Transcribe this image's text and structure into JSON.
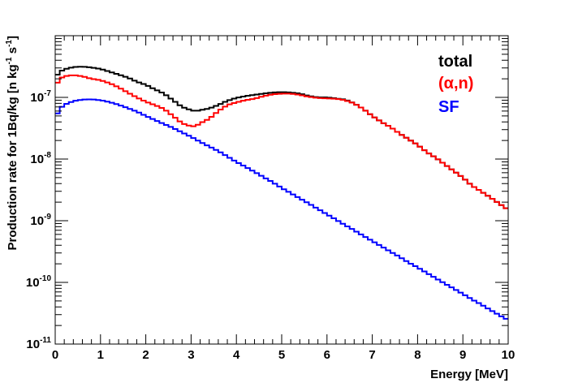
{
  "chart_data": {
    "type": "line",
    "step": true,
    "xlabel": "Energy [MeV]",
    "ylabel": "Production rate for 1Bq/kg [n kg⁻¹ s⁻¹]",
    "ylabel_parts": {
      "main": "Production rate for 1Bq/kg [n kg",
      "exp1": "-1",
      "mid": " s",
      "exp2": "-1",
      "end": "]"
    },
    "xlim": [
      0,
      10
    ],
    "ylim": [
      1e-11,
      1e-06
    ],
    "yscale": "log",
    "grid": false,
    "legend": "top-right",
    "x_ticks": [
      "0",
      "1",
      "2",
      "3",
      "4",
      "5",
      "6",
      "7",
      "8",
      "9",
      "10"
    ],
    "y_ticks": [
      {
        "value": 1e-11,
        "base": "10",
        "exp": "-11"
      },
      {
        "value": 1e-10,
        "base": "10",
        "exp": "-10"
      },
      {
        "value": 1e-09,
        "base": "10",
        "exp": "-9"
      },
      {
        "value": 1e-08,
        "base": "10",
        "exp": "-8"
      },
      {
        "value": 1e-07,
        "base": "10",
        "exp": "-7"
      }
    ],
    "series": [
      {
        "name": "total",
        "color": "#000000",
        "points": [
          [
            0,
            2.1e-07
          ],
          [
            0.1,
            2.6e-07
          ],
          [
            0.2,
            2.85e-07
          ],
          [
            0.4,
            3.1e-07
          ],
          [
            0.6,
            3.15e-07
          ],
          [
            0.8,
            3.05e-07
          ],
          [
            1.0,
            2.9e-07
          ],
          [
            1.2,
            2.6e-07
          ],
          [
            1.4,
            2.35e-07
          ],
          [
            1.6,
            2.1e-07
          ],
          [
            1.8,
            1.8e-07
          ],
          [
            2.0,
            1.6e-07
          ],
          [
            2.2,
            1.35e-07
          ],
          [
            2.4,
            1.15e-07
          ],
          [
            2.6,
            9e-08
          ],
          [
            2.8,
            7e-08
          ],
          [
            3.0,
            6.2e-08
          ],
          [
            3.1,
            6e-08
          ],
          [
            3.2,
            6.2e-08
          ],
          [
            3.4,
            6.6e-08
          ],
          [
            3.6,
            7.5e-08
          ],
          [
            3.8,
            8.8e-08
          ],
          [
            4.0,
            9.8e-08
          ],
          [
            4.2,
            1.05e-07
          ],
          [
            4.4,
            1.1e-07
          ],
          [
            4.6,
            1.15e-07
          ],
          [
            4.8,
            1.2e-07
          ],
          [
            5.0,
            1.22e-07
          ],
          [
            5.2,
            1.2e-07
          ],
          [
            5.4,
            1.15e-07
          ],
          [
            5.6,
            1.05e-07
          ],
          [
            5.8,
            1e-07
          ],
          [
            6.0,
            1e-07
          ],
          [
            6.2,
            9.6e-08
          ],
          [
            6.4,
            9.2e-08
          ],
          [
            6.6,
            8e-08
          ],
          [
            6.8,
            6.5e-08
          ],
          [
            7.0,
            5e-08
          ],
          [
            7.2,
            4e-08
          ],
          [
            7.4,
            3.3e-08
          ],
          [
            7.6,
            2.6e-08
          ],
          [
            7.8,
            2.1e-08
          ],
          [
            8.0,
            1.7e-08
          ],
          [
            8.2,
            1.3e-08
          ],
          [
            8.4,
            1.05e-08
          ],
          [
            8.6,
            8.2e-09
          ],
          [
            8.8,
            6.4e-09
          ],
          [
            9.0,
            5e-09
          ],
          [
            9.2,
            3.7e-09
          ],
          [
            9.4,
            3e-09
          ],
          [
            9.6,
            2.4e-09
          ],
          [
            9.8,
            1.9e-09
          ],
          [
            10.0,
            1.5e-09
          ]
        ]
      },
      {
        "name": "(α,n)",
        "color": "#ff0000",
        "points": [
          [
            0,
            1.5e-07
          ],
          [
            0.1,
            2e-07
          ],
          [
            0.2,
            2.2e-07
          ],
          [
            0.4,
            2.3e-07
          ],
          [
            0.6,
            2.2e-07
          ],
          [
            0.8,
            2e-07
          ],
          [
            1.0,
            1.9e-07
          ],
          [
            1.2,
            1.7e-07
          ],
          [
            1.4,
            1.45e-07
          ],
          [
            1.6,
            1.2e-07
          ],
          [
            1.8,
            1e-07
          ],
          [
            2.0,
            8.5e-08
          ],
          [
            2.2,
            7.5e-08
          ],
          [
            2.4,
            6.5e-08
          ],
          [
            2.6,
            5e-08
          ],
          [
            2.8,
            3.8e-08
          ],
          [
            3.0,
            3.4e-08
          ],
          [
            3.1,
            3.4e-08
          ],
          [
            3.2,
            3.8e-08
          ],
          [
            3.4,
            4.5e-08
          ],
          [
            3.6,
            6e-08
          ],
          [
            3.8,
            7.5e-08
          ],
          [
            4.0,
            8.3e-08
          ],
          [
            4.2,
            9e-08
          ],
          [
            4.4,
            9.5e-08
          ],
          [
            4.6,
            1.05e-07
          ],
          [
            4.8,
            1.12e-07
          ],
          [
            5.0,
            1.15e-07
          ],
          [
            5.2,
            1.15e-07
          ],
          [
            5.4,
            1.1e-07
          ],
          [
            5.6,
            1.02e-07
          ],
          [
            5.8,
            9.8e-08
          ],
          [
            6.0,
            9.6e-08
          ],
          [
            6.2,
            9.5e-08
          ],
          [
            6.4,
            9e-08
          ],
          [
            6.6,
            8e-08
          ],
          [
            6.8,
            6.5e-08
          ],
          [
            7.0,
            5e-08
          ],
          [
            7.2,
            4e-08
          ],
          [
            7.4,
            3.3e-08
          ],
          [
            7.6,
            2.6e-08
          ],
          [
            7.8,
            2.1e-08
          ],
          [
            8.0,
            1.7e-08
          ],
          [
            8.2,
            1.3e-08
          ],
          [
            8.4,
            1.05e-08
          ],
          [
            8.6,
            8.2e-09
          ],
          [
            8.8,
            6.4e-09
          ],
          [
            9.0,
            5e-09
          ],
          [
            9.2,
            3.7e-09
          ],
          [
            9.4,
            3e-09
          ],
          [
            9.6,
            2.4e-09
          ],
          [
            9.8,
            1.9e-09
          ],
          [
            10.0,
            1.5e-09
          ]
        ]
      },
      {
        "name": "SF",
        "color": "#0000ff",
        "points": [
          [
            0,
            3.2e-08
          ],
          [
            0.05,
            5.5e-08
          ],
          [
            0.1,
            6.5e-08
          ],
          [
            0.2,
            7.6e-08
          ],
          [
            0.4,
            8.7e-08
          ],
          [
            0.6,
            9.2e-08
          ],
          [
            0.8,
            9.3e-08
          ],
          [
            1.0,
            9e-08
          ],
          [
            1.2,
            8.4e-08
          ],
          [
            1.4,
            7.6e-08
          ],
          [
            1.6,
            6.7e-08
          ],
          [
            1.8,
            5.9e-08
          ],
          [
            2.0,
            5e-08
          ],
          [
            2.2,
            4.3e-08
          ],
          [
            2.4,
            3.7e-08
          ],
          [
            2.6,
            3.2e-08
          ],
          [
            2.8,
            2.7e-08
          ],
          [
            3.0,
            2.3e-08
          ],
          [
            3.2,
            1.9e-08
          ],
          [
            3.4,
            1.6e-08
          ],
          [
            3.6,
            1.35e-08
          ],
          [
            3.8,
            1.1e-08
          ],
          [
            4.0,
            9e-09
          ],
          [
            4.2,
            7.5e-09
          ],
          [
            4.4,
            6.2e-09
          ],
          [
            4.6,
            5.1e-09
          ],
          [
            4.8,
            4.2e-09
          ],
          [
            5.0,
            3.4e-09
          ],
          [
            5.2,
            2.8e-09
          ],
          [
            5.4,
            2.3e-09
          ],
          [
            5.6,
            1.9e-09
          ],
          [
            5.8,
            1.55e-09
          ],
          [
            6.0,
            1.27e-09
          ],
          [
            6.2,
            1.04e-09
          ],
          [
            6.4,
            8.5e-10
          ],
          [
            6.6,
            7e-10
          ],
          [
            6.8,
            5.7e-10
          ],
          [
            7.0,
            4.7e-10
          ],
          [
            7.2,
            3.85e-10
          ],
          [
            7.4,
            3.15e-10
          ],
          [
            7.6,
            2.6e-10
          ],
          [
            7.8,
            2.1e-10
          ],
          [
            8.0,
            1.75e-10
          ],
          [
            8.2,
            1.43e-10
          ],
          [
            8.4,
            1.17e-10
          ],
          [
            8.6,
            9.6e-11
          ],
          [
            8.8,
            7.9e-11
          ],
          [
            9.0,
            6.5e-11
          ],
          [
            9.2,
            5.3e-11
          ],
          [
            9.4,
            4.4e-11
          ],
          [
            9.6,
            3.6e-11
          ],
          [
            9.8,
            2.95e-11
          ],
          [
            10.0,
            2.45e-11
          ]
        ]
      }
    ]
  }
}
